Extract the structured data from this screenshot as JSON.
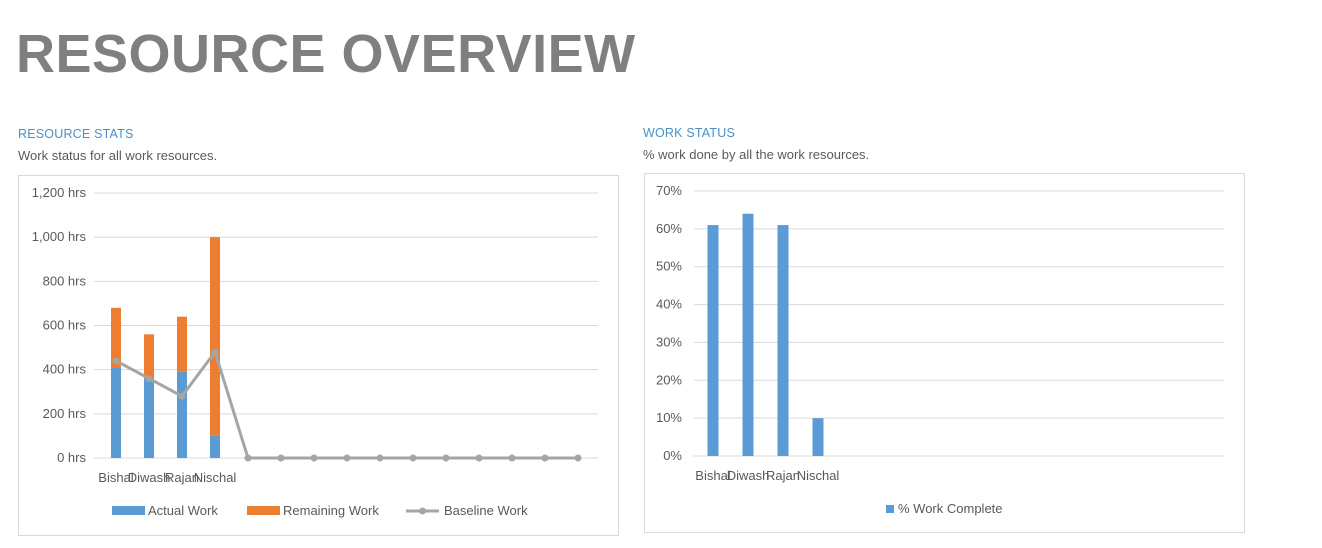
{
  "page": {
    "title": "RESOURCE OVERVIEW"
  },
  "left": {
    "heading": "RESOURCE STATS",
    "subtitle": "Work status for all work resources."
  },
  "right": {
    "heading": "WORK STATUS",
    "subtitle": "% work done by all the work resources."
  },
  "colors": {
    "actual": "#5b9bd5",
    "remaining": "#ed7d31",
    "baseline": "#a5a5a5",
    "heading": "#4a8fc7",
    "title": "#7f7f7f"
  },
  "chart_data": [
    {
      "type": "bar",
      "stacked": true,
      "categories": [
        "Bishal",
        "Diwash",
        "Rajan",
        "Nischal",
        "",
        "",
        "",
        "",
        "",
        "",
        "",
        "",
        "",
        "",
        ""
      ],
      "series": [
        {
          "name": "Actual Work",
          "type": "bar",
          "values": [
            410,
            360,
            390,
            100,
            0,
            0,
            0,
            0,
            0,
            0,
            0,
            0,
            0,
            0,
            0
          ]
        },
        {
          "name": "Remaining Work",
          "type": "bar",
          "values": [
            270,
            200,
            250,
            900,
            0,
            0,
            0,
            0,
            0,
            0,
            0,
            0,
            0,
            0,
            0
          ]
        },
        {
          "name": "Baseline Work",
          "type": "line",
          "values": [
            440,
            360,
            280,
            480,
            0,
            0,
            0,
            0,
            0,
            0,
            0,
            0,
            0,
            0,
            0
          ]
        }
      ],
      "yticks": [
        "0 hrs",
        "200 hrs",
        "400 hrs",
        "600 hrs",
        "800 hrs",
        "1,000 hrs",
        "1,200 hrs"
      ],
      "ylim": [
        0,
        1200
      ],
      "grid": true,
      "legend": "bottom"
    },
    {
      "type": "bar",
      "categories": [
        "Bishal",
        "Diwash",
        "Rajan",
        "Nischal"
      ],
      "series": [
        {
          "name": "% Work Complete",
          "values": [
            61,
            64,
            61,
            10
          ]
        }
      ],
      "yticks": [
        "0%",
        "10%",
        "20%",
        "30%",
        "40%",
        "50%",
        "60%",
        "70%"
      ],
      "ylim": [
        0,
        70
      ],
      "grid": true,
      "legend": "bottom"
    }
  ]
}
